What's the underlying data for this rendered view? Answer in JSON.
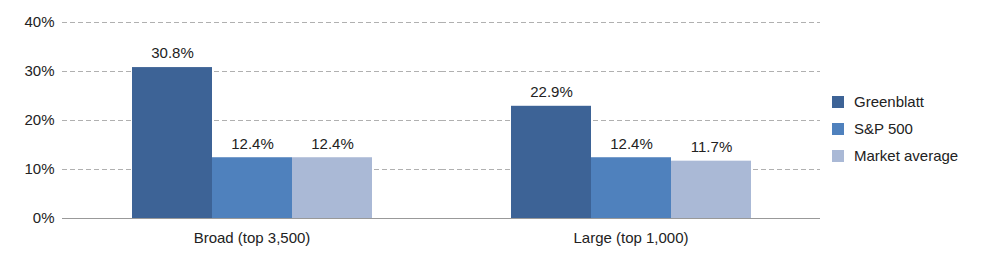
{
  "chart_data": {
    "type": "bar",
    "categories": [
      "Broad (top 3,500)",
      "Large (top 1,000)"
    ],
    "series": [
      {
        "name": "Greenblatt",
        "color": "#3d6396",
        "values": [
          30.8,
          22.9
        ],
        "value_labels": [
          "30.8%",
          "22.9%"
        ]
      },
      {
        "name": "S&P 500",
        "color": "#4f81bd",
        "values": [
          12.4,
          12.4
        ],
        "value_labels": [
          "12.4%",
          "12.4%"
        ]
      },
      {
        "name": "Market average",
        "color": "#aab9d6",
        "values": [
          12.4,
          11.7
        ],
        "value_labels": [
          "12.4%",
          "11.7%"
        ]
      }
    ],
    "ylim": [
      0,
      40
    ],
    "yticks": [
      {
        "value": 0,
        "label": "0%"
      },
      {
        "value": 10,
        "label": "10%"
      },
      {
        "value": 20,
        "label": "20%"
      },
      {
        "value": 30,
        "label": "30%"
      },
      {
        "value": 40,
        "label": "40%"
      }
    ],
    "grid": true,
    "legend": "right",
    "data_labels": true
  }
}
